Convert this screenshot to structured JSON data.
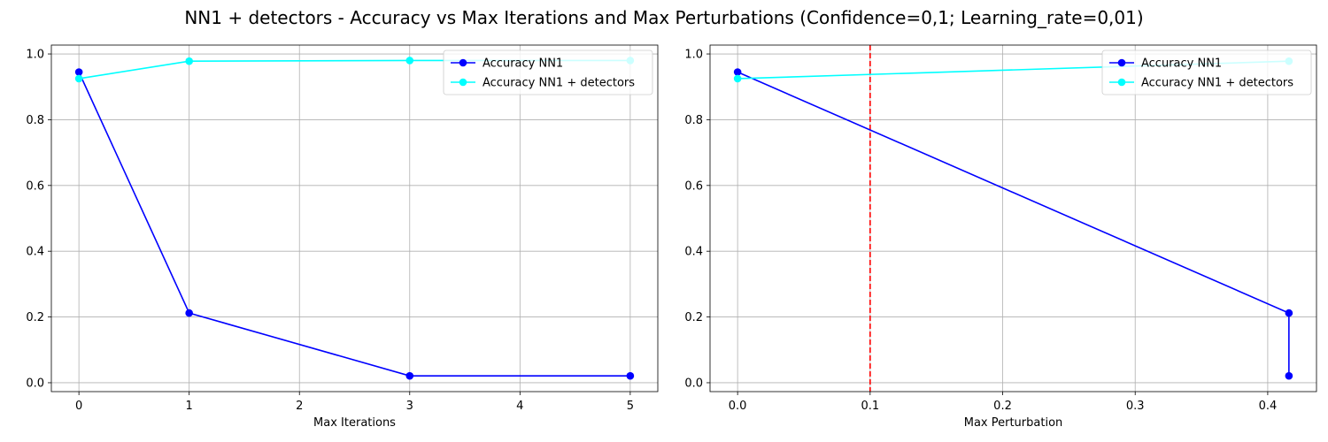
{
  "title": "NN1 + detectors - Accuracy vs Max Iterations and Max Perturbations (Confidence=0,1; Learning_rate=0,01)",
  "colors": {
    "nn1": "#0000ff",
    "nn1_detectors": "#00ffff",
    "vline": "#ff0000",
    "grid": "#b0b0b0"
  },
  "chart_data": [
    {
      "type": "line",
      "xlabel": "Max Iterations",
      "ylabel": "",
      "xlim": [
        -0.25,
        5.25
      ],
      "ylim": [
        -0.027,
        1.027
      ],
      "xticks": [
        0,
        1,
        2,
        3,
        4,
        5
      ],
      "xtick_labels": [
        "0",
        "1",
        "2",
        "3",
        "4",
        "5"
      ],
      "yticks": [
        0,
        0.2,
        0.4,
        0.6,
        0.8,
        1.0
      ],
      "ytick_labels": [
        "0.0",
        "0.2",
        "0.4",
        "0.6",
        "0.8",
        "1.0"
      ],
      "grid": true,
      "legend": "top-right",
      "series": [
        {
          "name": "Accuracy NN1",
          "color": "#0000ff",
          "x": [
            0,
            1,
            3,
            5
          ],
          "y": [
            0.945,
            0.212,
            0.021,
            0.021
          ]
        },
        {
          "name": "Accuracy NN1 + detectors",
          "color": "#00ffff",
          "x": [
            0,
            1,
            3,
            5
          ],
          "y": [
            0.925,
            0.978,
            0.98,
            0.98
          ]
        }
      ]
    },
    {
      "type": "line",
      "xlabel": "Max Perturbation",
      "ylabel": "",
      "xlim": [
        -0.0208,
        0.4368
      ],
      "ylim": [
        -0.027,
        1.027
      ],
      "xticks": [
        0.0,
        0.1,
        0.2,
        0.3,
        0.4
      ],
      "xtick_labels": [
        "0.0",
        "0.1",
        "0.2",
        "0.3",
        "0.4"
      ],
      "yticks": [
        0,
        0.2,
        0.4,
        0.6,
        0.8,
        1.0
      ],
      "ytick_labels": [
        "0.0",
        "0.2",
        "0.4",
        "0.6",
        "0.8",
        "1.0"
      ],
      "grid": true,
      "legend": "top-right",
      "vline": {
        "x": 0.1,
        "color": "#ff0000",
        "style": "dashed"
      },
      "series": [
        {
          "name": "Accuracy NN1",
          "color": "#0000ff",
          "x": [
            0,
            0.416,
            0.416
          ],
          "y": [
            0.945,
            0.212,
            0.021
          ]
        },
        {
          "name": "Accuracy NN1 + detectors",
          "color": "#00ffff",
          "x": [
            0,
            0.416
          ],
          "y": [
            0.925,
            0.978
          ]
        }
      ]
    }
  ]
}
